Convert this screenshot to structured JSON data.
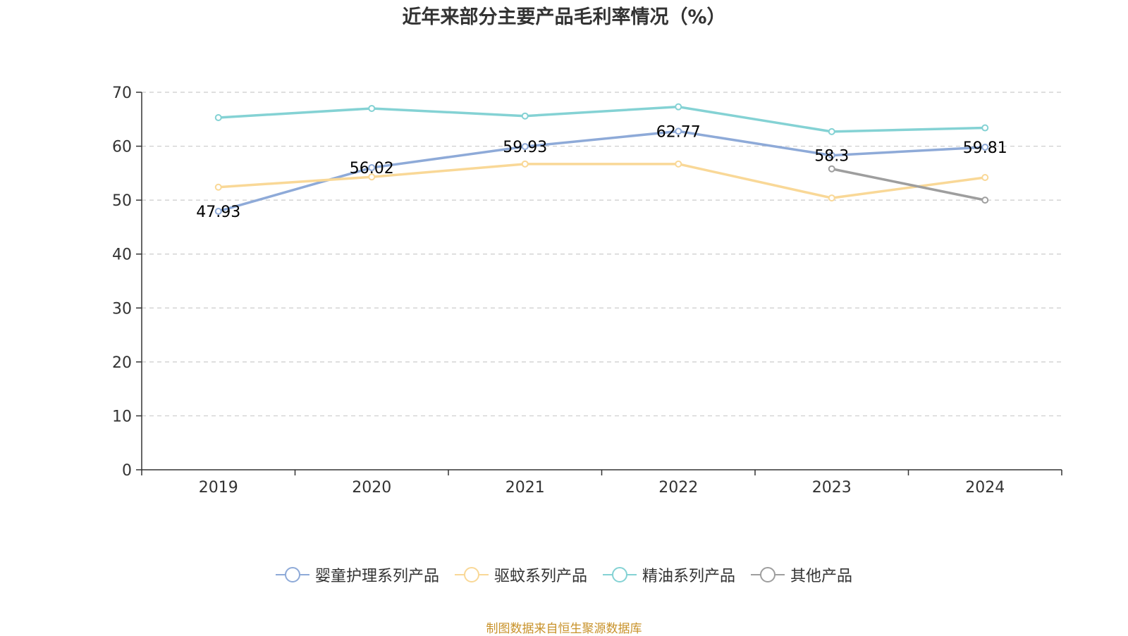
{
  "title": "近年来部分主要产品毛利率情况（%）",
  "source_note": "制图数据来自恒生聚源数据库",
  "colors": {
    "axis": "#333333",
    "grid": "#cccccc",
    "tick_text": "#333333",
    "label_text": "#000000"
  },
  "chart_data": {
    "type": "line",
    "title": "近年来部分主要产品毛利率情况（%）",
    "x": [
      "2019",
      "2020",
      "2021",
      "2022",
      "2023",
      "2024"
    ],
    "ylim": [
      0,
      70
    ],
    "yticks": [
      0,
      10,
      20,
      30,
      40,
      50,
      60,
      70
    ],
    "grid": "horizontal dashed",
    "legend_position": "bottom",
    "series": [
      {
        "name": "婴童护理系列产品",
        "color": "#8eaad8",
        "values": [
          47.93,
          56.02,
          59.93,
          62.77,
          58.3,
          59.81
        ],
        "show_labels": true
      },
      {
        "name": "驱蚊系列产品",
        "color": "#f9d897",
        "values": [
          52.4,
          54.3,
          56.7,
          56.7,
          50.4,
          54.2
        ],
        "show_labels": false
      },
      {
        "name": "精油系列产品",
        "color": "#84d2d4",
        "values": [
          65.3,
          67.0,
          65.6,
          67.3,
          62.7,
          63.4
        ],
        "show_labels": false
      },
      {
        "name": "其他产品",
        "color": "#9e9e9e",
        "values": [
          null,
          null,
          null,
          null,
          55.8,
          50.0
        ],
        "show_labels": false
      }
    ]
  }
}
